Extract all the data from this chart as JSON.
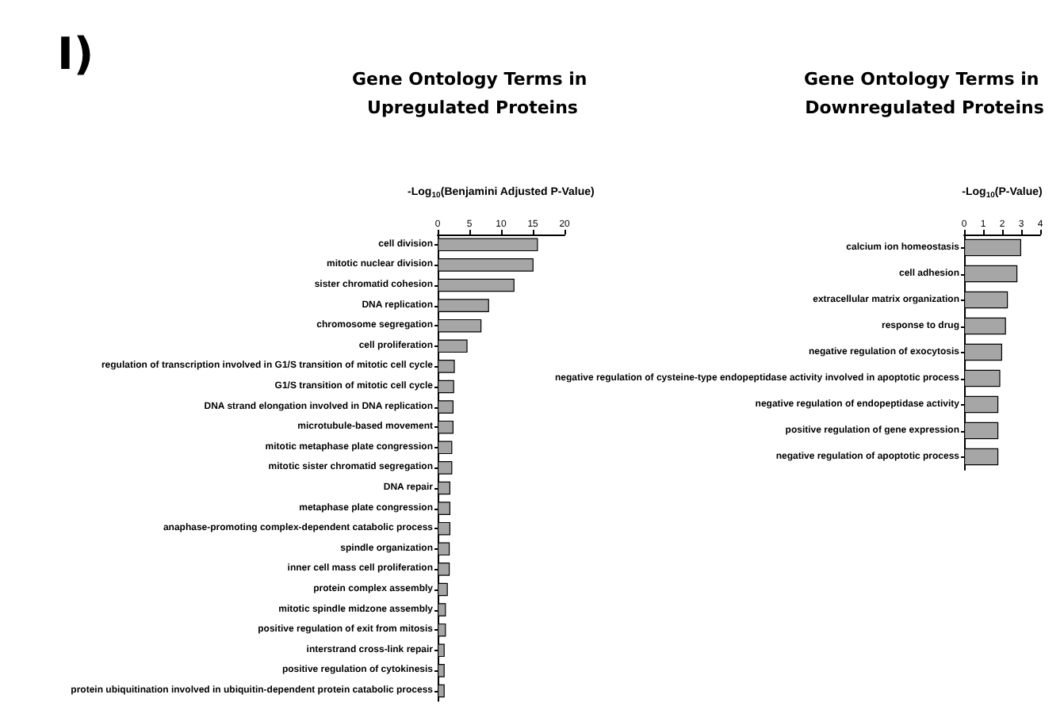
{
  "chart_data": [
    {
      "type": "bar",
      "orientation": "horizontal",
      "title": "Gene Ontology Terms in Upregulated Proteins",
      "xlabel": "-Log$_{10}$(Benjamini Adjusted P-Value)",
      "annotations": [
        "I)"
      ],
      "categories": [
        "cell division",
        "mitotic nuclear division",
        "sister chromatid cohesion",
        "DNA replication",
        "chromosome segregation",
        "cell proliferation",
        "regulation of transcription involved in G1/S transition of mitotic cell cycle",
        "G1/S transition of mitotic cell cycle",
        "DNA strand elongation involved in DNA replication",
        "microtubule-based movement",
        "mitotic metaphase plate congression",
        "mitotic sister chromatid segregation",
        "DNA repair",
        "metaphase plate congression",
        "anaphase-promoting complex-dependent catabolic process",
        "spindle organization",
        "inner cell mass cell proliferation",
        "protein complex assembly",
        "mitotic spindle midzone assembly",
        "positive regulation of exit from mitosis",
        "interstrand cross-link repair",
        "positive regulation of cytokinesis",
        "protein ubiquitination involved in ubiquitin-dependent protein catabolic process"
      ],
      "values": [
        15.8,
        15.1,
        12.1,
        8.1,
        6.9,
        4.7,
        2.7,
        2.6,
        2.5,
        2.5,
        2.3,
        2.3,
        2.0,
        2.0,
        2.0,
        1.9,
        1.9,
        1.6,
        1.3,
        1.3,
        1.1,
        1.1,
        1.1
      ],
      "color": "#a6a6a6",
      "xlim": [
        0,
        20
      ],
      "xticks": [
        0,
        5,
        10,
        15,
        20
      ]
    },
    {
      "type": "bar",
      "orientation": "horizontal",
      "title": "Gene Ontology Terms in Downregulated Proteins",
      "xlabel": "-Log$_{10}$(P-Value)",
      "categories": [
        "calcium ion homeostasis",
        "cell adhesion",
        "extracellular matrix organization",
        "response to drug",
        "negative regulation of exocytosis",
        "negative regulation of cysteine-type endopeptidase activity involved in apoptotic process",
        "negative regulation of endopeptidase activity",
        "positive regulation of gene expression",
        "negative regulation of apoptotic process"
      ],
      "values": [
        3.0,
        2.8,
        2.3,
        2.2,
        2.0,
        1.9,
        1.8,
        1.8,
        1.8
      ],
      "color": "#a6a6a6",
      "xlim": [
        0,
        4
      ],
      "xticks": [
        0,
        1,
        2,
        3,
        4
      ]
    }
  ]
}
